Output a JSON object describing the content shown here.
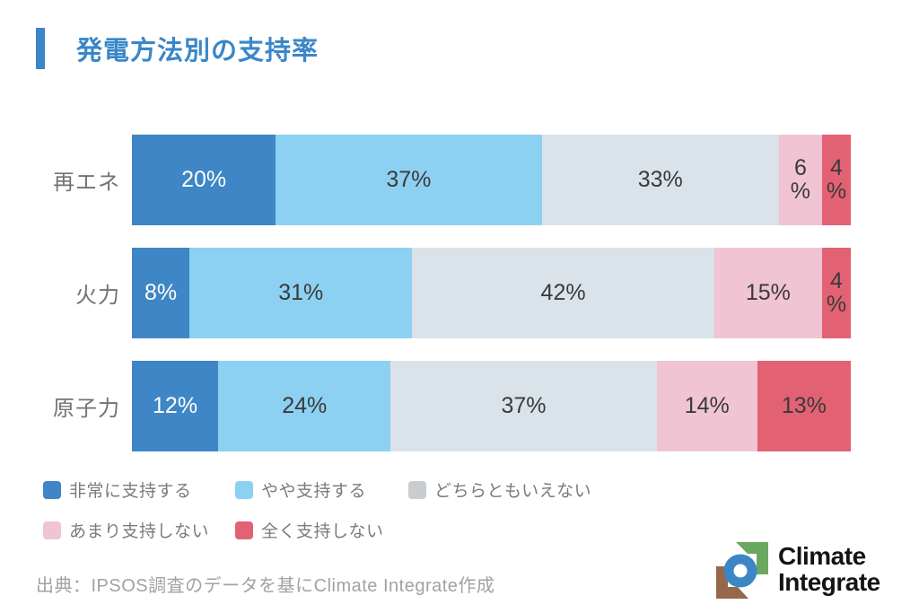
{
  "header": {
    "title": "発電方法別の支持率",
    "accent_color": "#3a87c8"
  },
  "chart_data": {
    "type": "bar",
    "stacked": true,
    "orientation": "horizontal",
    "title": "発電方法別の支持率",
    "xlabel": "",
    "ylabel": "",
    "xlim": [
      0,
      100
    ],
    "unit": "%",
    "grid": false,
    "legend_position": "bottom",
    "categories": [
      "再エネ",
      "火力",
      "原子力"
    ],
    "series": [
      {
        "name": "非常に支持する",
        "color": "#3e86c5",
        "label_color": "#ffffff",
        "values": [
          20,
          8,
          12
        ]
      },
      {
        "name": "やや支持する",
        "color": "#8dd1f2",
        "label_color": "#3a3a3a",
        "values": [
          37,
          31,
          24
        ]
      },
      {
        "name": "どちらともいえない",
        "color": "#dae3e9",
        "label_color": "#3a3a3a",
        "values": [
          33,
          42,
          37
        ]
      },
      {
        "name": "あまり支持しない",
        "color": "#f0c4d2",
        "label_color": "#3a3a3a",
        "values": [
          6,
          15,
          14
        ]
      },
      {
        "name": "全く支持しない",
        "color": "#e26274",
        "label_color": "#3a3a3a",
        "values": [
          4,
          4,
          13
        ]
      }
    ],
    "rows": [
      {
        "category": "再エネ",
        "segments": [
          {
            "value": 20,
            "label": "20%"
          },
          {
            "value": 37,
            "label": "37%"
          },
          {
            "value": 33,
            "label": "33%"
          },
          {
            "value": 6,
            "label": "6\n%"
          },
          {
            "value": 4,
            "label": "4\n%"
          }
        ]
      },
      {
        "category": "火力",
        "segments": [
          {
            "value": 8,
            "label": "8%"
          },
          {
            "value": 31,
            "label": "31%"
          },
          {
            "value": 42,
            "label": "42%"
          },
          {
            "value": 15,
            "label": "15%"
          },
          {
            "value": 4,
            "label": "4\n%"
          }
        ]
      },
      {
        "category": "原子力",
        "segments": [
          {
            "value": 12,
            "label": "12%"
          },
          {
            "value": 24,
            "label": "24%"
          },
          {
            "value": 37,
            "label": "37%"
          },
          {
            "value": 14,
            "label": "14%"
          },
          {
            "value": 13,
            "label": "13%"
          }
        ]
      }
    ]
  },
  "legend": {
    "items": [
      {
        "label": "非常に支持する",
        "color": "#3e86c5"
      },
      {
        "label": "やや支持する",
        "color": "#8dd1f2"
      },
      {
        "label": "どちらともいえない",
        "color": "#c9cdd0"
      },
      {
        "label": "あまり支持しない",
        "color": "#f0c4d2"
      },
      {
        "label": "全く支持しない",
        "color": "#e26274"
      }
    ]
  },
  "footer": {
    "source": "出典：IPSOS調査のデータを基にClimate Integrate作成",
    "logo": {
      "line1": "Climate",
      "line2": "Integrate",
      "blue": "#3d86c6",
      "green": "#6aa860",
      "brown": "#96674a"
    }
  }
}
